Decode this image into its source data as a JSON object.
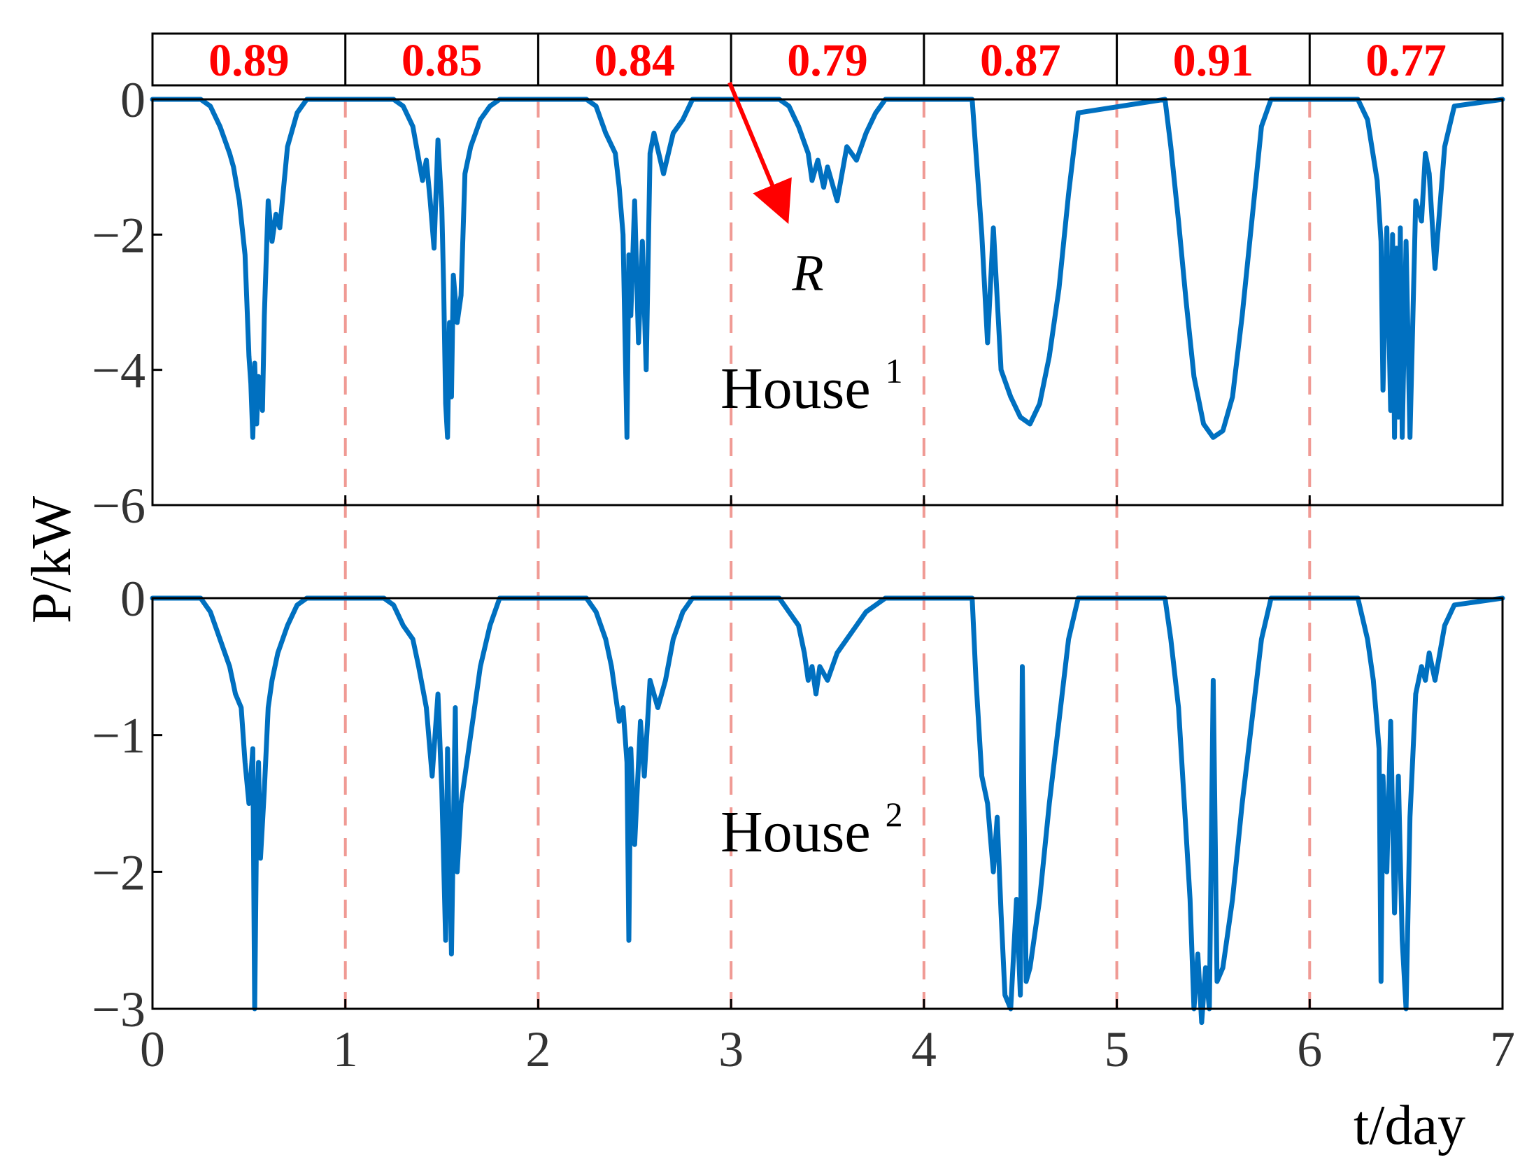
{
  "chart_data": [
    {
      "type": "line",
      "panel_label": "House",
      "panel_label_sup": "1",
      "xlabel": "",
      "ylabel": "P/kW",
      "xlim": [
        0,
        7
      ],
      "ylim": [
        -6,
        0
      ],
      "yticks": [
        0,
        -2,
        -4,
        -6
      ],
      "ytick_labels": [
        "0",
        "−2",
        "−4",
        "−6"
      ],
      "day_boundaries": [
        1,
        2,
        3,
        4,
        5,
        6
      ],
      "daily_ratios": [
        "0.89",
        "0.85",
        "0.84",
        "0.79",
        "0.87",
        "0.91",
        "0.77"
      ],
      "annotation": {
        "text": "R",
        "points_to_day": 3
      },
      "series": [
        {
          "x": [
            0,
            0.25,
            0.3,
            0.35,
            0.4,
            0.42,
            0.45,
            0.48,
            0.5,
            0.51,
            0.52,
            0.53,
            0.54,
            0.55,
            0.56,
            0.57,
            0.58,
            0.6,
            0.62,
            0.64,
            0.66,
            0.7,
            0.75,
            0.8,
            1.25,
            1.3,
            1.35,
            1.4,
            1.42,
            1.44,
            1.46,
            1.48,
            1.5,
            1.51,
            1.52,
            1.53,
            1.54,
            1.55,
            1.56,
            1.58,
            1.6,
            1.62,
            1.65,
            1.7,
            1.75,
            1.8,
            2.25,
            2.3,
            2.35,
            2.4,
            2.42,
            2.44,
            2.45,
            2.46,
            2.47,
            2.48,
            2.5,
            2.52,
            2.54,
            2.56,
            2.58,
            2.6,
            2.65,
            2.7,
            2.75,
            2.8,
            3.25,
            3.3,
            3.35,
            3.4,
            3.42,
            3.45,
            3.48,
            3.5,
            3.55,
            3.6,
            3.65,
            3.7,
            3.75,
            3.8,
            4.25,
            4.27,
            4.3,
            4.33,
            4.36,
            4.4,
            4.45,
            4.5,
            4.55,
            4.6,
            4.65,
            4.7,
            4.75,
            4.8,
            5.25,
            5.28,
            5.32,
            5.36,
            5.4,
            5.45,
            5.5,
            5.55,
            5.6,
            5.65,
            5.7,
            5.75,
            5.8,
            6.25,
            6.3,
            6.35,
            6.37,
            6.38,
            6.4,
            6.42,
            6.43,
            6.44,
            6.45,
            6.46,
            6.47,
            6.48,
            6.5,
            6.52,
            6.55,
            6.58,
            6.6,
            6.62,
            6.65,
            6.7,
            6.75,
            7
          ],
          "values": [
            0,
            0,
            -0.1,
            -0.4,
            -0.8,
            -1.0,
            -1.5,
            -2.3,
            -3.8,
            -4.2,
            -5.0,
            -3.9,
            -4.8,
            -4.1,
            -4.4,
            -4.6,
            -3.2,
            -1.5,
            -2.1,
            -1.7,
            -1.9,
            -0.7,
            -0.2,
            0,
            0,
            -0.1,
            -0.4,
            -1.2,
            -0.9,
            -1.5,
            -2.2,
            -0.6,
            -1.6,
            -2.8,
            -4.5,
            -5.0,
            -3.3,
            -4.4,
            -2.6,
            -3.3,
            -2.9,
            -1.1,
            -0.7,
            -0.3,
            -0.1,
            0,
            0,
            -0.1,
            -0.5,
            -0.8,
            -1.3,
            -2.0,
            -3.5,
            -5.0,
            -2.3,
            -3.2,
            -1.5,
            -3.6,
            -2.1,
            -4.0,
            -0.8,
            -0.5,
            -1.1,
            -0.5,
            -0.3,
            0,
            0,
            -0.1,
            -0.4,
            -0.8,
            -1.2,
            -0.9,
            -1.3,
            -1.0,
            -1.5,
            -0.7,
            -0.9,
            -0.5,
            -0.2,
            0,
            0,
            -0.8,
            -2.0,
            -3.6,
            -1.9,
            -4.0,
            -4.4,
            -4.7,
            -4.8,
            -4.5,
            -3.8,
            -2.8,
            -1.4,
            -0.2,
            0,
            -0.7,
            -1.8,
            -3.0,
            -4.1,
            -4.8,
            -5.0,
            -4.9,
            -4.4,
            -3.2,
            -1.8,
            -0.4,
            0,
            0,
            -0.3,
            -1.2,
            -2.1,
            -4.3,
            -1.9,
            -4.6,
            -2.0,
            -5.0,
            -2.2,
            -4.7,
            -1.9,
            -5.0,
            -2.1,
            -5.0,
            -1.5,
            -1.8,
            -0.8,
            -1.1,
            -2.5,
            -0.7,
            -0.1,
            0
          ]
        }
      ]
    },
    {
      "type": "line",
      "panel_label": "House",
      "panel_label_sup": "2",
      "xlabel": "t/day",
      "ylabel": "P/kW",
      "xlim": [
        0,
        7
      ],
      "ylim": [
        -3,
        0
      ],
      "xticks": [
        0,
        1,
        2,
        3,
        4,
        5,
        6,
        7
      ],
      "xtick_labels": [
        "0",
        "1",
        "2",
        "3",
        "4",
        "5",
        "6",
        "7"
      ],
      "yticks": [
        0,
        -1,
        -2,
        -3
      ],
      "ytick_labels": [
        "0",
        "−1",
        "−2",
        "−3"
      ],
      "day_boundaries": [
        1,
        2,
        3,
        4,
        5,
        6
      ],
      "series": [
        {
          "x": [
            0,
            0.25,
            0.3,
            0.35,
            0.4,
            0.43,
            0.46,
            0.48,
            0.5,
            0.52,
            0.53,
            0.54,
            0.55,
            0.56,
            0.58,
            0.6,
            0.62,
            0.65,
            0.7,
            0.75,
            0.8,
            1.2,
            1.25,
            1.3,
            1.35,
            1.38,
            1.42,
            1.45,
            1.48,
            1.5,
            1.52,
            1.53,
            1.55,
            1.57,
            1.58,
            1.6,
            1.63,
            1.66,
            1.7,
            1.75,
            1.8,
            2.25,
            2.3,
            2.35,
            2.38,
            2.42,
            2.44,
            2.46,
            2.47,
            2.48,
            2.5,
            2.53,
            2.55,
            2.58,
            2.62,
            2.66,
            2.7,
            2.75,
            2.8,
            3.25,
            3.3,
            3.35,
            3.38,
            3.4,
            3.42,
            3.44,
            3.46,
            3.5,
            3.55,
            3.6,
            3.65,
            3.7,
            3.75,
            3.8,
            4.25,
            4.27,
            4.3,
            4.33,
            4.36,
            4.38,
            4.4,
            4.42,
            4.45,
            4.48,
            4.5,
            4.51,
            4.53,
            4.55,
            4.6,
            4.65,
            4.7,
            4.75,
            4.8,
            5.25,
            5.28,
            5.32,
            5.35,
            5.38,
            5.4,
            5.42,
            5.44,
            5.46,
            5.48,
            5.5,
            5.52,
            5.55,
            5.6,
            5.65,
            5.7,
            5.75,
            5.8,
            6.25,
            6.3,
            6.33,
            6.36,
            6.37,
            6.38,
            6.4,
            6.42,
            6.44,
            6.46,
            6.48,
            6.5,
            6.52,
            6.55,
            6.58,
            6.6,
            6.62,
            6.65,
            6.7,
            6.75,
            7
          ],
          "values": [
            0,
            0,
            -0.1,
            -0.3,
            -0.5,
            -0.7,
            -0.8,
            -1.2,
            -1.5,
            -1.1,
            -3.0,
            -1.6,
            -1.2,
            -1.9,
            -1.4,
            -0.8,
            -0.6,
            -0.4,
            -0.2,
            -0.05,
            0,
            0,
            -0.05,
            -0.2,
            -0.3,
            -0.5,
            -0.8,
            -1.3,
            -0.7,
            -1.4,
            -2.5,
            -1.1,
            -2.6,
            -0.8,
            -2.0,
            -1.5,
            -1.2,
            -0.9,
            -0.5,
            -0.2,
            0,
            0,
            -0.1,
            -0.3,
            -0.5,
            -0.9,
            -0.8,
            -1.2,
            -2.5,
            -1.1,
            -1.8,
            -0.9,
            -1.3,
            -0.6,
            -0.8,
            -0.6,
            -0.3,
            -0.1,
            0,
            0,
            -0.1,
            -0.2,
            -0.4,
            -0.6,
            -0.5,
            -0.7,
            -0.5,
            -0.6,
            -0.4,
            -0.3,
            -0.2,
            -0.1,
            -0.05,
            0,
            0,
            -0.6,
            -1.3,
            -1.5,
            -2.0,
            -1.6,
            -2.3,
            -2.9,
            -3.0,
            -2.2,
            -2.9,
            -0.5,
            -2.8,
            -2.7,
            -2.2,
            -1.5,
            -0.9,
            -0.3,
            0,
            0,
            -0.3,
            -0.8,
            -1.5,
            -2.2,
            -3.0,
            -2.6,
            -3.1,
            -2.7,
            -3.0,
            -0.6,
            -2.8,
            -2.7,
            -2.2,
            -1.5,
            -0.9,
            -0.3,
            0,
            0,
            -0.3,
            -0.6,
            -1.1,
            -2.8,
            -1.3,
            -2.0,
            -0.9,
            -2.3,
            -1.3,
            -2.5,
            -3.0,
            -1.6,
            -0.7,
            -0.5,
            -0.6,
            -0.4,
            -0.6,
            -0.2,
            -0.05,
            0
          ]
        }
      ]
    }
  ],
  "colors": {
    "series": "#0070c0",
    "divider": "#f09a94",
    "ratio_text": "#ff0000",
    "arrow": "#ff0000",
    "axis": "#000000"
  }
}
